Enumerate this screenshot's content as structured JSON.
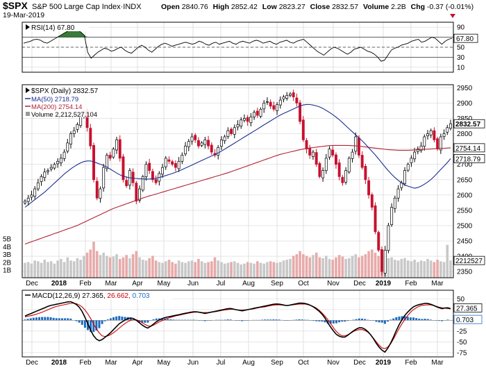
{
  "header": {
    "symbol": "$SPX",
    "name": "S&P 500 Large Cap Index",
    "exchange": "INDX",
    "date": "19-Mar-2019",
    "open_label": "Open",
    "open": "2840.76",
    "high_label": "High",
    "high": "2852.42",
    "low_label": "Low",
    "low": "2823.27",
    "close_label": "Close",
    "close": "2832.57",
    "volume_label": "Volume",
    "volume": "2.2B",
    "chg_label": "Chg",
    "chg": "-0.37 (-0.01%)"
  },
  "colors": {
    "up": "#000000",
    "down": "#c8102e",
    "ma50": "#1c2d8f",
    "ma200": "#b22234",
    "volume_up": "#c8c8c8",
    "volume_down": "#e8aaaa",
    "rsi_fill": "#3a7a3a",
    "macd_hist": "#1f6bbf",
    "macd_line": "#000000",
    "macd_signal": "#cc0000",
    "grid": "#d8d8d8",
    "label_box": "#ffffff"
  },
  "chart_data": [
    {
      "type": "line",
      "panel": "rsi",
      "legend": "RSI(14) 67.80",
      "ylim": [
        0,
        100
      ],
      "yticks": [
        "90",
        "70",
        "50",
        "30",
        "10"
      ],
      "ytick_values": [
        90,
        70,
        50,
        30,
        10
      ],
      "reference_lines": [
        70,
        50,
        30
      ],
      "last_label": "67.80",
      "months": [
        {
          "label": "Dec",
          "bold": false
        },
        {
          "label": "2018",
          "bold": true
        },
        {
          "label": "Feb",
          "bold": false
        },
        {
          "label": "Mar",
          "bold": false
        },
        {
          "label": "Apr",
          "bold": false
        },
        {
          "label": "May",
          "bold": false
        },
        {
          "label": "Jun",
          "bold": false
        },
        {
          "label": "Jul",
          "bold": false
        },
        {
          "label": "Aug",
          "bold": false
        },
        {
          "label": "Sep",
          "bold": false
        },
        {
          "label": "Oct",
          "bold": false
        },
        {
          "label": "Nov",
          "bold": false
        },
        {
          "label": "Dec",
          "bold": false
        },
        {
          "label": "2019",
          "bold": true
        },
        {
          "label": "Feb",
          "bold": false
        },
        {
          "label": "Mar",
          "bold": false
        }
      ],
      "values": [
        58,
        60,
        62,
        65,
        66,
        64,
        60,
        58,
        62,
        66,
        70,
        74,
        78,
        82,
        85,
        86,
        84,
        80,
        74,
        40,
        28,
        34,
        40,
        44,
        48,
        46,
        42,
        44,
        48,
        50,
        44,
        40,
        38,
        44,
        50,
        54,
        50,
        44,
        40,
        46,
        52,
        56,
        58,
        55,
        52,
        54,
        56,
        58,
        60,
        58,
        56,
        58,
        62,
        60,
        56,
        54,
        58,
        60,
        56,
        58,
        60,
        62,
        58,
        56,
        60,
        62,
        60,
        58,
        62,
        64,
        62,
        58,
        60,
        62,
        58,
        56,
        60,
        62,
        64,
        60,
        58,
        62,
        64,
        66,
        60,
        54,
        48,
        42,
        38,
        34,
        40,
        46,
        50,
        48,
        44,
        40,
        36,
        40,
        46,
        48,
        50,
        46,
        42,
        40,
        36,
        30,
        22,
        24,
        34,
        44,
        48,
        50,
        54,
        56,
        58,
        62,
        64,
        66,
        60,
        62,
        66,
        70,
        68,
        62,
        56,
        62,
        66,
        67.8
      ]
    },
    {
      "type": "candlestick",
      "panel": "price",
      "legend": [
        "$SPX (Daily) 2832.57",
        "MA(50) 2718.79",
        "MA(200) 2754.14",
        "Volume 2,212,527,104"
      ],
      "ylim": [
        2330,
        2960
      ],
      "yticks": [
        "2950",
        "2900",
        "2850",
        "2800",
        "2750",
        "2700",
        "2650",
        "2600",
        "2550",
        "2500",
        "2450",
        "2400",
        "2350"
      ],
      "ytick_values": [
        2950,
        2900,
        2850,
        2800,
        2750,
        2700,
        2650,
        2600,
        2550,
        2500,
        2450,
        2400,
        2350
      ],
      "last_labels": {
        "close": "2832.57",
        "ma200": "2754.14",
        "ma50": "2718.79"
      },
      "closes": [
        2580,
        2590,
        2600,
        2620,
        2640,
        2660,
        2675,
        2680,
        2690,
        2700,
        2710,
        2720,
        2740,
        2770,
        2800,
        2810,
        2830,
        2855,
        2870,
        2820,
        2760,
        2650,
        2590,
        2620,
        2690,
        2730,
        2720,
        2750,
        2780,
        2720,
        2650,
        2630,
        2680,
        2640,
        2580,
        2620,
        2660,
        2700,
        2680,
        2650,
        2640,
        2670,
        2690,
        2720,
        2710,
        2700,
        2690,
        2710,
        2730,
        2760,
        2775,
        2790,
        2780,
        2760,
        2770,
        2780,
        2760,
        2740,
        2730,
        2755,
        2780,
        2790,
        2810,
        2800,
        2820,
        2830,
        2845,
        2850,
        2840,
        2855,
        2870,
        2860,
        2880,
        2900,
        2905,
        2890,
        2880,
        2895,
        2910,
        2920,
        2925,
        2930,
        2920,
        2900,
        2840,
        2780,
        2750,
        2730,
        2740,
        2700,
        2660,
        2680,
        2720,
        2750,
        2730,
        2700,
        2660,
        2640,
        2680,
        2720,
        2740,
        2790,
        2730,
        2690,
        2650,
        2600,
        2560,
        2480,
        2420,
        2350,
        2420,
        2500,
        2560,
        2590,
        2620,
        2640,
        2680,
        2700,
        2720,
        2740,
        2750,
        2760,
        2790,
        2800,
        2810,
        2780,
        2750,
        2790,
        2800,
        2820,
        2832.57
      ],
      "ma50": [
        2560,
        2570,
        2580,
        2590,
        2600,
        2610,
        2622,
        2634,
        2646,
        2658,
        2670,
        2680,
        2690,
        2698,
        2705,
        2710,
        2712,
        2710,
        2705,
        2700,
        2695,
        2688,
        2680,
        2672,
        2665,
        2660,
        2657,
        2655,
        2654,
        2653,
        2652,
        2652,
        2653,
        2655,
        2658,
        2662,
        2666,
        2670,
        2675,
        2680,
        2686,
        2692,
        2698,
        2704,
        2710,
        2716,
        2722,
        2728,
        2734,
        2740,
        2748,
        2756,
        2764,
        2772,
        2780,
        2788,
        2796,
        2804,
        2812,
        2820,
        2828,
        2836,
        2844,
        2852,
        2860,
        2866,
        2872,
        2878,
        2884,
        2890,
        2894,
        2896,
        2895,
        2892,
        2888,
        2882,
        2874,
        2866,
        2856,
        2846,
        2834,
        2822,
        2810,
        2798,
        2786,
        2774,
        2760,
        2746,
        2732,
        2716,
        2700,
        2684,
        2670,
        2657,
        2646,
        2636,
        2630,
        2626,
        2622,
        2625,
        2632,
        2640,
        2650,
        2662,
        2676,
        2690,
        2703,
        2718.79
      ],
      "ma200": [
        2440,
        2446,
        2452,
        2458,
        2464,
        2470,
        2476,
        2482,
        2488,
        2494,
        2500,
        2508,
        2516,
        2524,
        2532,
        2540,
        2548,
        2556,
        2562,
        2568,
        2574,
        2580,
        2586,
        2592,
        2597,
        2602,
        2607,
        2612,
        2617,
        2622,
        2627,
        2632,
        2637,
        2642,
        2647,
        2652,
        2657,
        2662,
        2667,
        2672,
        2678,
        2684,
        2690,
        2696,
        2702,
        2708,
        2714,
        2720,
        2726,
        2732,
        2736,
        2740,
        2744,
        2748,
        2751,
        2754,
        2756,
        2758,
        2760,
        2762,
        2762,
        2762,
        2762,
        2761,
        2760,
        2758,
        2756,
        2754,
        2752,
        2750,
        2748,
        2747,
        2746,
        2746,
        2746,
        2747,
        2748,
        2749,
        2750,
        2751,
        2752,
        2753,
        2754.14
      ],
      "volume": [
        1.9,
        2.0,
        1.8,
        2.2,
        2.1,
        1.9,
        2.3,
        2.0,
        2.1,
        1.8,
        2.2,
        2.4,
        2.0,
        2.6,
        2.2,
        2.1,
        2.5,
        2.3,
        2.8,
        3.2,
        3.6,
        4.6,
        3.4,
        2.9,
        3.2,
        2.8,
        2.6,
        2.7,
        3.0,
        2.4,
        2.6,
        2.9,
        2.5,
        3.0,
        3.4,
        2.6,
        2.3,
        2.2,
        2.5,
        2.8,
        2.2,
        2.0,
        1.9,
        2.1,
        2.3,
        2.0,
        1.8,
        2.2,
        2.0,
        1.9,
        2.1,
        2.2,
        2.0,
        2.4,
        2.1,
        1.9,
        2.0,
        2.1,
        2.6,
        2.2,
        2.0,
        1.8,
        1.9,
        2.0,
        2.1,
        1.9,
        1.7,
        1.8,
        2.0,
        1.9,
        1.8,
        2.1,
        1.9,
        1.8,
        2.0,
        2.1,
        2.0,
        1.9,
        2.0,
        2.2,
        2.3,
        2.4,
        2.8,
        3.0,
        3.4,
        3.0,
        2.8,
        2.6,
        2.9,
        3.2,
        2.6,
        2.5,
        2.8,
        2.4,
        2.3,
        2.6,
        2.9,
        2.7,
        2.4,
        2.5,
        2.8,
        3.0,
        2.6,
        2.8,
        3.0,
        3.4,
        3.6,
        3.2,
        2.8,
        3.4,
        2.7,
        2.5,
        2.6,
        2.3,
        2.2,
        2.4,
        2.5,
        2.2,
        2.1,
        2.3,
        2.0,
        2.2,
        2.1,
        2.4,
        2.2,
        2.0,
        2.3,
        2.1,
        2.0,
        4.2,
        2.2
      ],
      "volume_ylim": [
        0,
        6.2
      ],
      "volume_ticks": [
        "5B",
        "4B",
        "3B",
        "2B",
        "1B"
      ],
      "volume_tick_values": [
        5,
        4,
        3,
        2,
        1
      ],
      "volume_last_label": "2212527",
      "months": [
        "Dec",
        "2018",
        "Feb",
        "Mar",
        "Apr",
        "May",
        "Jun",
        "Jul",
        "Aug",
        "Sep",
        "Oct",
        "Nov",
        "Dec",
        "2019",
        "Feb",
        "Mar"
      ]
    },
    {
      "type": "line",
      "panel": "macd",
      "legend": [
        "MACD(12,26,9)",
        "27.365",
        "26.662",
        "0.703"
      ],
      "ylim": [
        -85,
        70
      ],
      "yticks": [
        "50",
        "25",
        "0",
        "-25",
        "-50",
        "-75"
      ],
      "ytick_values": [
        50,
        25,
        0,
        -25,
        -50,
        -75
      ],
      "last_labels": {
        "macd": "27.365",
        "signal": "26.662",
        "histogram": "0.703"
      },
      "macd": [
        10,
        14,
        18,
        22,
        26,
        30,
        34,
        36,
        38,
        40,
        42,
        44,
        40,
        34,
        20,
        0,
        -22,
        -40,
        -48,
        -44,
        -36,
        -28,
        -18,
        -8,
        -2,
        4,
        6,
        2,
        -6,
        -14,
        -18,
        -12,
        -4,
        2,
        6,
        8,
        10,
        12,
        14,
        16,
        18,
        20,
        20,
        18,
        16,
        18,
        20,
        22,
        24,
        26,
        28,
        26,
        24,
        22,
        24,
        26,
        28,
        30,
        32,
        34,
        36,
        38,
        38,
        36,
        34,
        36,
        38,
        40,
        40,
        38,
        34,
        28,
        20,
        10,
        -6,
        -20,
        -32,
        -38,
        -40,
        -34,
        -26,
        -20,
        -16,
        -20,
        -28,
        -40,
        -56,
        -68,
        -74,
        -60,
        -40,
        -18,
        0,
        14,
        24,
        32,
        36,
        38,
        40,
        38,
        34,
        30,
        27,
        30,
        27.365
      ],
      "signal": [
        8,
        10,
        12,
        15,
        18,
        22,
        26,
        30,
        33,
        35,
        37,
        39,
        40,
        38,
        32,
        22,
        8,
        -10,
        -26,
        -36,
        -38,
        -34,
        -28,
        -20,
        -12,
        -5,
        0,
        2,
        0,
        -6,
        -12,
        -14,
        -10,
        -4,
        0,
        4,
        7,
        10,
        12,
        14,
        16,
        18,
        19,
        19,
        18,
        18,
        19,
        20,
        22,
        24,
        25,
        26,
        25,
        24,
        24,
        25,
        26,
        28,
        30,
        31,
        33,
        35,
        36,
        36,
        35,
        35,
        36,
        37,
        38,
        38,
        36,
        33,
        28,
        20,
        10,
        -2,
        -16,
        -28,
        -36,
        -36,
        -32,
        -26,
        -22,
        -21,
        -24,
        -30,
        -42,
        -54,
        -64,
        -66,
        -58,
        -42,
        -24,
        -8,
        6,
        18,
        26,
        32,
        35,
        36,
        36,
        34,
        31,
        29,
        28,
        26.662
      ]
    }
  ]
}
